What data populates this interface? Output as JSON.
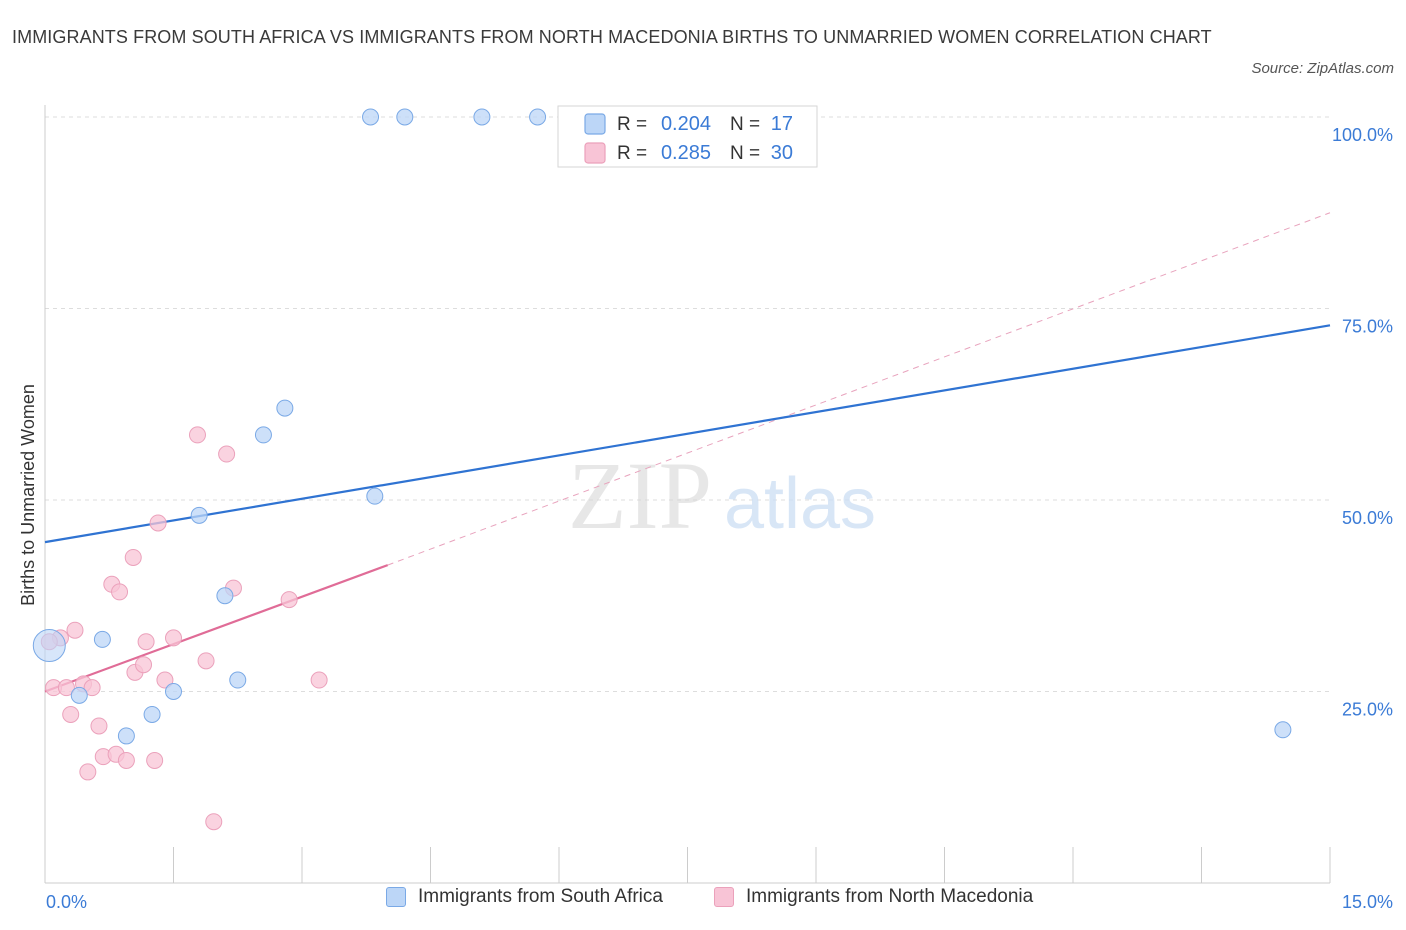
{
  "chart_data": {
    "type": "scatter",
    "title": "IMMIGRANTS FROM SOUTH AFRICA VS IMMIGRANTS FROM NORTH MACEDONIA BIRTHS TO UNMARRIED WOMEN CORRELATION CHART",
    "source": "Source: ZipAtlas.com",
    "watermark": {
      "zip": "ZIP",
      "atlas": "atlas"
    },
    "ylabel": "Births to Unmarried Women",
    "xlim": [
      0,
      15
    ],
    "ylim": [
      0,
      100
    ],
    "x_tick_labels": {
      "min": "0.0%",
      "max": "15.0%"
    },
    "y_ticks": [
      {
        "value": 25,
        "label": "25.0%"
      },
      {
        "value": 50,
        "label": "50.0%"
      },
      {
        "value": 75,
        "label": "75.0%"
      },
      {
        "value": 100,
        "label": "100.0%"
      }
    ],
    "colors": {
      "blue": "#2f73d2",
      "blue_fill": "#bcd6f7",
      "pink": "#e06c97",
      "pink_fill": "#f8c4d6",
      "value_blue": "#3b7bd6"
    },
    "legend_stats": [
      {
        "r_label": "R =",
        "r_value": "0.204",
        "n_label": "N =",
        "n_value": "17"
      },
      {
        "r_label": "R =",
        "r_value": "0.285",
        "n_label": "N =",
        "n_value": "30"
      }
    ],
    "series": [
      {
        "name": "Immigrants from South Africa",
        "color": "#2f73d2",
        "points": [
          [
            0.05,
            31.0
          ],
          [
            0.4,
            24.5
          ],
          [
            0.67,
            31.8
          ],
          [
            0.95,
            19.2
          ],
          [
            1.25,
            22.0
          ],
          [
            1.5,
            25.0
          ],
          [
            1.8,
            48.0
          ],
          [
            2.1,
            37.5
          ],
          [
            2.25,
            26.5
          ],
          [
            2.55,
            58.5
          ],
          [
            2.8,
            62.0
          ],
          [
            3.85,
            50.5
          ],
          [
            3.8,
            100.0
          ],
          [
            4.2,
            100.0
          ],
          [
            5.1,
            100.0
          ],
          [
            5.75,
            100.0
          ],
          [
            14.45,
            20.0
          ]
        ],
        "trend": {
          "x": [
            0,
            15
          ],
          "y": [
            44.5,
            72.8
          ]
        }
      },
      {
        "name": "Immigrants from North Macedonia",
        "color": "#e06c97",
        "points": [
          [
            0.1,
            25.5
          ],
          [
            0.18,
            32.0
          ],
          [
            0.25,
            25.5
          ],
          [
            0.3,
            22.0
          ],
          [
            0.35,
            33.0
          ],
          [
            0.45,
            26.0
          ],
          [
            0.5,
            14.5
          ],
          [
            0.55,
            25.5
          ],
          [
            0.63,
            20.5
          ],
          [
            0.68,
            16.5
          ],
          [
            0.78,
            39.0
          ],
          [
            0.83,
            16.8
          ],
          [
            0.87,
            38.0
          ],
          [
            0.95,
            16.0
          ],
          [
            1.03,
            42.5
          ],
          [
            1.05,
            27.5
          ],
          [
            1.15,
            28.5
          ],
          [
            1.18,
            31.5
          ],
          [
            1.28,
            16.0
          ],
          [
            1.32,
            47.0
          ],
          [
            1.4,
            26.5
          ],
          [
            1.5,
            32.0
          ],
          [
            1.78,
            58.5
          ],
          [
            1.88,
            29.0
          ],
          [
            1.97,
            8.0
          ],
          [
            2.12,
            56.0
          ],
          [
            2.2,
            38.5
          ],
          [
            2.85,
            37.0
          ],
          [
            3.2,
            26.5
          ],
          [
            0.05,
            31.5
          ]
        ],
        "trend": {
          "x": [
            0,
            4.0
          ],
          "y": [
            25.0,
            41.5
          ]
        },
        "trend_extended": {
          "x": [
            4.0,
            15
          ],
          "y": [
            41.5,
            87.5
          ]
        }
      }
    ]
  }
}
